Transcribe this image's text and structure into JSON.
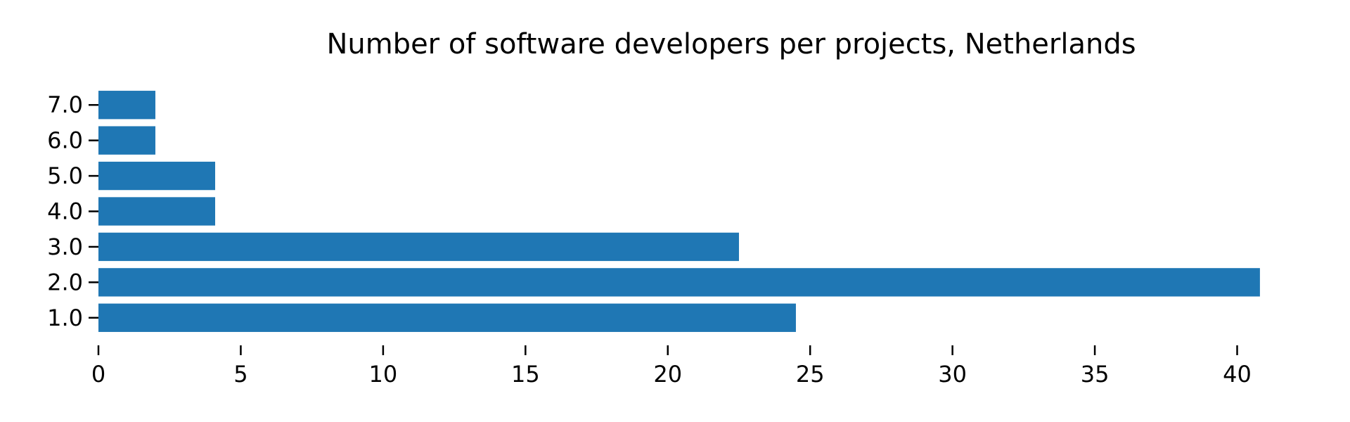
{
  "colors": {
    "bar": "#1f77b4",
    "axis": "#000000"
  },
  "chart_data": {
    "type": "bar",
    "orientation": "horizontal",
    "title": "Number of software developers per projects, Netherlands",
    "xlabel": "",
    "ylabel": "",
    "categories": [
      "1.0",
      "2.0",
      "3.0",
      "4.0",
      "5.0",
      "6.0",
      "7.0"
    ],
    "values": [
      24.5,
      40.8,
      22.5,
      4.1,
      4.1,
      2.0,
      2.0
    ],
    "xlim": [
      0,
      41
    ],
    "x_ticks": [
      0,
      5,
      10,
      15,
      20,
      25,
      30,
      35,
      40
    ],
    "x_tick_labels": [
      "0",
      "5",
      "10",
      "15",
      "20",
      "25",
      "30",
      "35",
      "40"
    ],
    "grid": false,
    "legend": "none"
  }
}
